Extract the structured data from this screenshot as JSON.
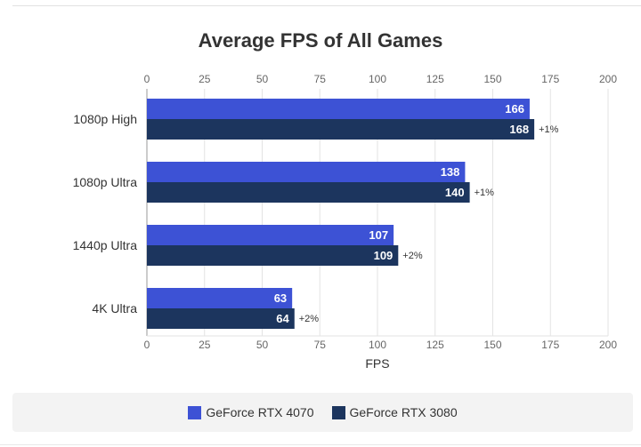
{
  "chart_data": {
    "type": "bar",
    "orientation": "horizontal",
    "title": "Average FPS of All Games",
    "xlabel": "FPS",
    "ylabel": "",
    "xlim": [
      0,
      200
    ],
    "ticks": [
      "0",
      "25",
      "50",
      "75",
      "100",
      "125",
      "150",
      "175",
      "200"
    ],
    "tick_values": [
      0,
      25,
      50,
      75,
      100,
      125,
      150,
      175,
      200
    ],
    "categories": [
      "1080p High",
      "1080p Ultra",
      "1440p Ultra",
      "4K Ultra"
    ],
    "series": [
      {
        "name": "GeForce RTX 4070",
        "color": "#3d52d5",
        "values": [
          166,
          138,
          107,
          63
        ]
      },
      {
        "name": "GeForce RTX 3080",
        "color": "#1c355e",
        "values": [
          168,
          140,
          109,
          64
        ]
      }
    ],
    "annotations": [
      "+1%",
      "+1%",
      "+2%",
      "+2%"
    ],
    "grid": true,
    "legend_position": "bottom"
  }
}
